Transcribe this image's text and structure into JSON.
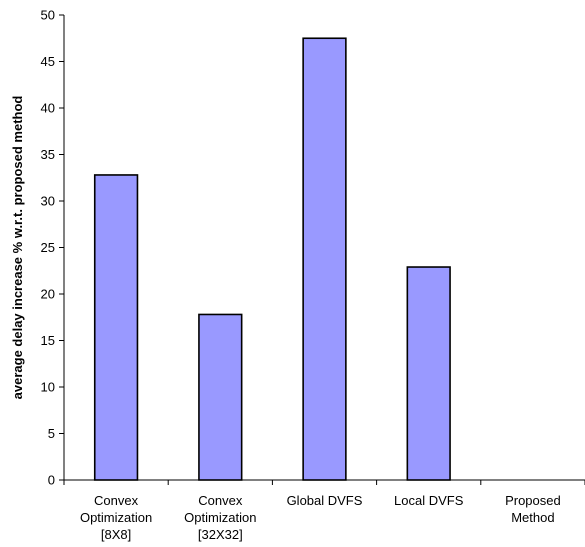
{
  "chart_data": {
    "type": "bar",
    "title": "",
    "xlabel": "",
    "ylabel": "average delay increase % w.r.t. proposed method",
    "ylim": [
      0,
      50
    ],
    "yticks": [
      0,
      5,
      10,
      15,
      20,
      25,
      30,
      35,
      40,
      45,
      50
    ],
    "grid": false,
    "legend": "none",
    "bar_color": "#9999ff",
    "bar_outline": "#000000",
    "categories": [
      [
        "Convex",
        "Optimization",
        "[8X8]"
      ],
      [
        "Convex",
        "Optimization",
        "[32X32]"
      ],
      [
        "Global DVFS"
      ],
      [
        "Local DVFS"
      ],
      [
        "Proposed",
        "Method"
      ]
    ],
    "values": [
      32.8,
      17.8,
      47.5,
      22.9,
      0
    ]
  }
}
